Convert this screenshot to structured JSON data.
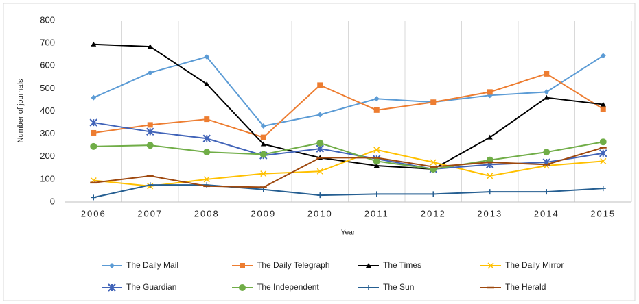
{
  "chart_data": {
    "type": "line",
    "x_label": "Year",
    "y_label": "Number of journals",
    "categories": [
      "2006",
      "2007",
      "2008",
      "2009",
      "2010",
      "2011",
      "2012",
      "2013",
      "2014",
      "2015"
    ],
    "ylim": [
      0,
      800
    ],
    "yticks": [
      0,
      100,
      200,
      300,
      400,
      500,
      600,
      700,
      800
    ],
    "grid": "vertical",
    "legend": "bottom",
    "series": [
      {
        "name": "The Daily Mail",
        "color": "#5B9BD5",
        "marker": "diamond",
        "values": [
          460,
          570,
          640,
          335,
          385,
          455,
          440,
          470,
          485,
          645
        ]
      },
      {
        "name": "The Daily Telegraph",
        "color": "#ED7D31",
        "marker": "square",
        "values": [
          305,
          340,
          365,
          285,
          515,
          405,
          440,
          485,
          565,
          410
        ]
      },
      {
        "name": "The Times",
        "color": "#000000",
        "marker": "triangle",
        "values": [
          695,
          685,
          520,
          255,
          195,
          160,
          145,
          285,
          460,
          430
        ]
      },
      {
        "name": "The Daily Mirror",
        "color": "#FFC000",
        "marker": "x",
        "values": [
          95,
          70,
          100,
          125,
          135,
          230,
          175,
          115,
          160,
          180
        ]
      },
      {
        "name": "The Guardian",
        "color": "#4063B8",
        "marker": "star",
        "values": [
          350,
          310,
          280,
          205,
          235,
          190,
          145,
          165,
          175,
          215
        ]
      },
      {
        "name": "The Independent",
        "color": "#70AD47",
        "marker": "circle",
        "values": [
          245,
          250,
          220,
          210,
          260,
          180,
          145,
          185,
          220,
          265
        ]
      },
      {
        "name": "The Sun",
        "color": "#255E91",
        "marker": "plus",
        "values": [
          20,
          75,
          75,
          55,
          30,
          35,
          35,
          45,
          45,
          60
        ]
      },
      {
        "name": "The Herald",
        "color": "#9E480E",
        "marker": "dash",
        "values": [
          85,
          115,
          70,
          65,
          195,
          195,
          155,
          175,
          165,
          240
        ]
      }
    ]
  }
}
